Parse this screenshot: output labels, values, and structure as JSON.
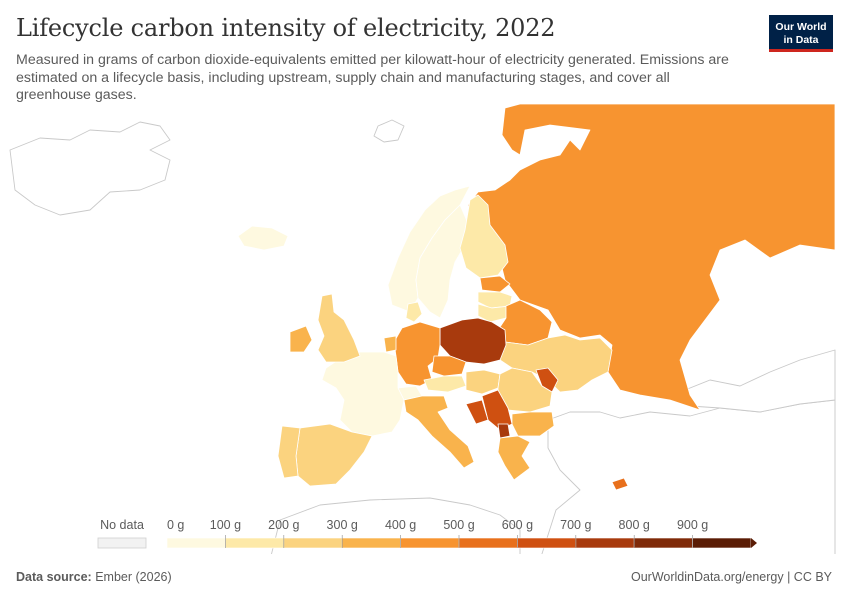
{
  "header": {
    "title": "Lifecycle carbon intensity of electricity, 2022",
    "subtitle": "Measured in grams of carbon dioxide-equivalents emitted per kilowatt-hour of electricity generated. Emissions are estimated on a lifecycle basis, including upstream, supply chain and manufacturing stages, and cover all greenhouse gases."
  },
  "logo": {
    "line1": "Our World",
    "line2": "in Data",
    "bg": "#002147",
    "accent": "#ce261e"
  },
  "legend": {
    "no_data_label": "No data",
    "ticks": [
      "0 g",
      "100 g",
      "200 g",
      "300 g",
      "400 g",
      "500 g",
      "600 g",
      "700 g",
      "800 g",
      "900 g"
    ],
    "colors": [
      "#fef9e0",
      "#fde9a8",
      "#fbd37f",
      "#f9b34c",
      "#f79430",
      "#e8701c",
      "#cf5011",
      "#a83a0d",
      "#7f2a09",
      "#5a1c05"
    ]
  },
  "countries": [
    {
      "name": "Russia",
      "band": 4
    },
    {
      "name": "Poland",
      "band": 7
    },
    {
      "name": "Germany",
      "band": 4
    },
    {
      "name": "France",
      "band": 0
    },
    {
      "name": "Spain",
      "band": 2
    },
    {
      "name": "Portugal",
      "band": 2
    },
    {
      "name": "United Kingdom",
      "band": 2
    },
    {
      "name": "Ireland",
      "band": 3
    },
    {
      "name": "Norway",
      "band": 0
    },
    {
      "name": "Sweden",
      "band": 0
    },
    {
      "name": "Finland",
      "band": 1
    },
    {
      "name": "Iceland",
      "band": 0
    },
    {
      "name": "Ukraine",
      "band": 2
    },
    {
      "name": "Belarus",
      "band": 4
    },
    {
      "name": "Italy",
      "band": 3
    },
    {
      "name": "Czechia",
      "band": 4
    },
    {
      "name": "Romania",
      "band": 2
    },
    {
      "name": "Bulgaria",
      "band": 3
    },
    {
      "name": "Greece",
      "band": 3
    },
    {
      "name": "Serbia",
      "band": 6
    },
    {
      "name": "Bosnia and Herzegovina",
      "band": 6
    },
    {
      "name": "Kosovo",
      "band": 7
    },
    {
      "name": "Moldova",
      "band": 6
    },
    {
      "name": "Cyprus",
      "band": 5
    },
    {
      "name": "Lithuania",
      "band": 1
    },
    {
      "name": "Latvia",
      "band": 1
    },
    {
      "name": "Estonia",
      "band": 4
    },
    {
      "name": "Hungary",
      "band": 2
    },
    {
      "name": "Austria",
      "band": 1
    },
    {
      "name": "Switzerland",
      "band": 0
    },
    {
      "name": "Netherlands",
      "band": 3
    },
    {
      "name": "Denmark",
      "band": 1
    }
  ],
  "footer": {
    "source_label": "Data source:",
    "source_value": "Ember (2026)",
    "url": "OurWorldinData.org/energy | CC BY"
  }
}
